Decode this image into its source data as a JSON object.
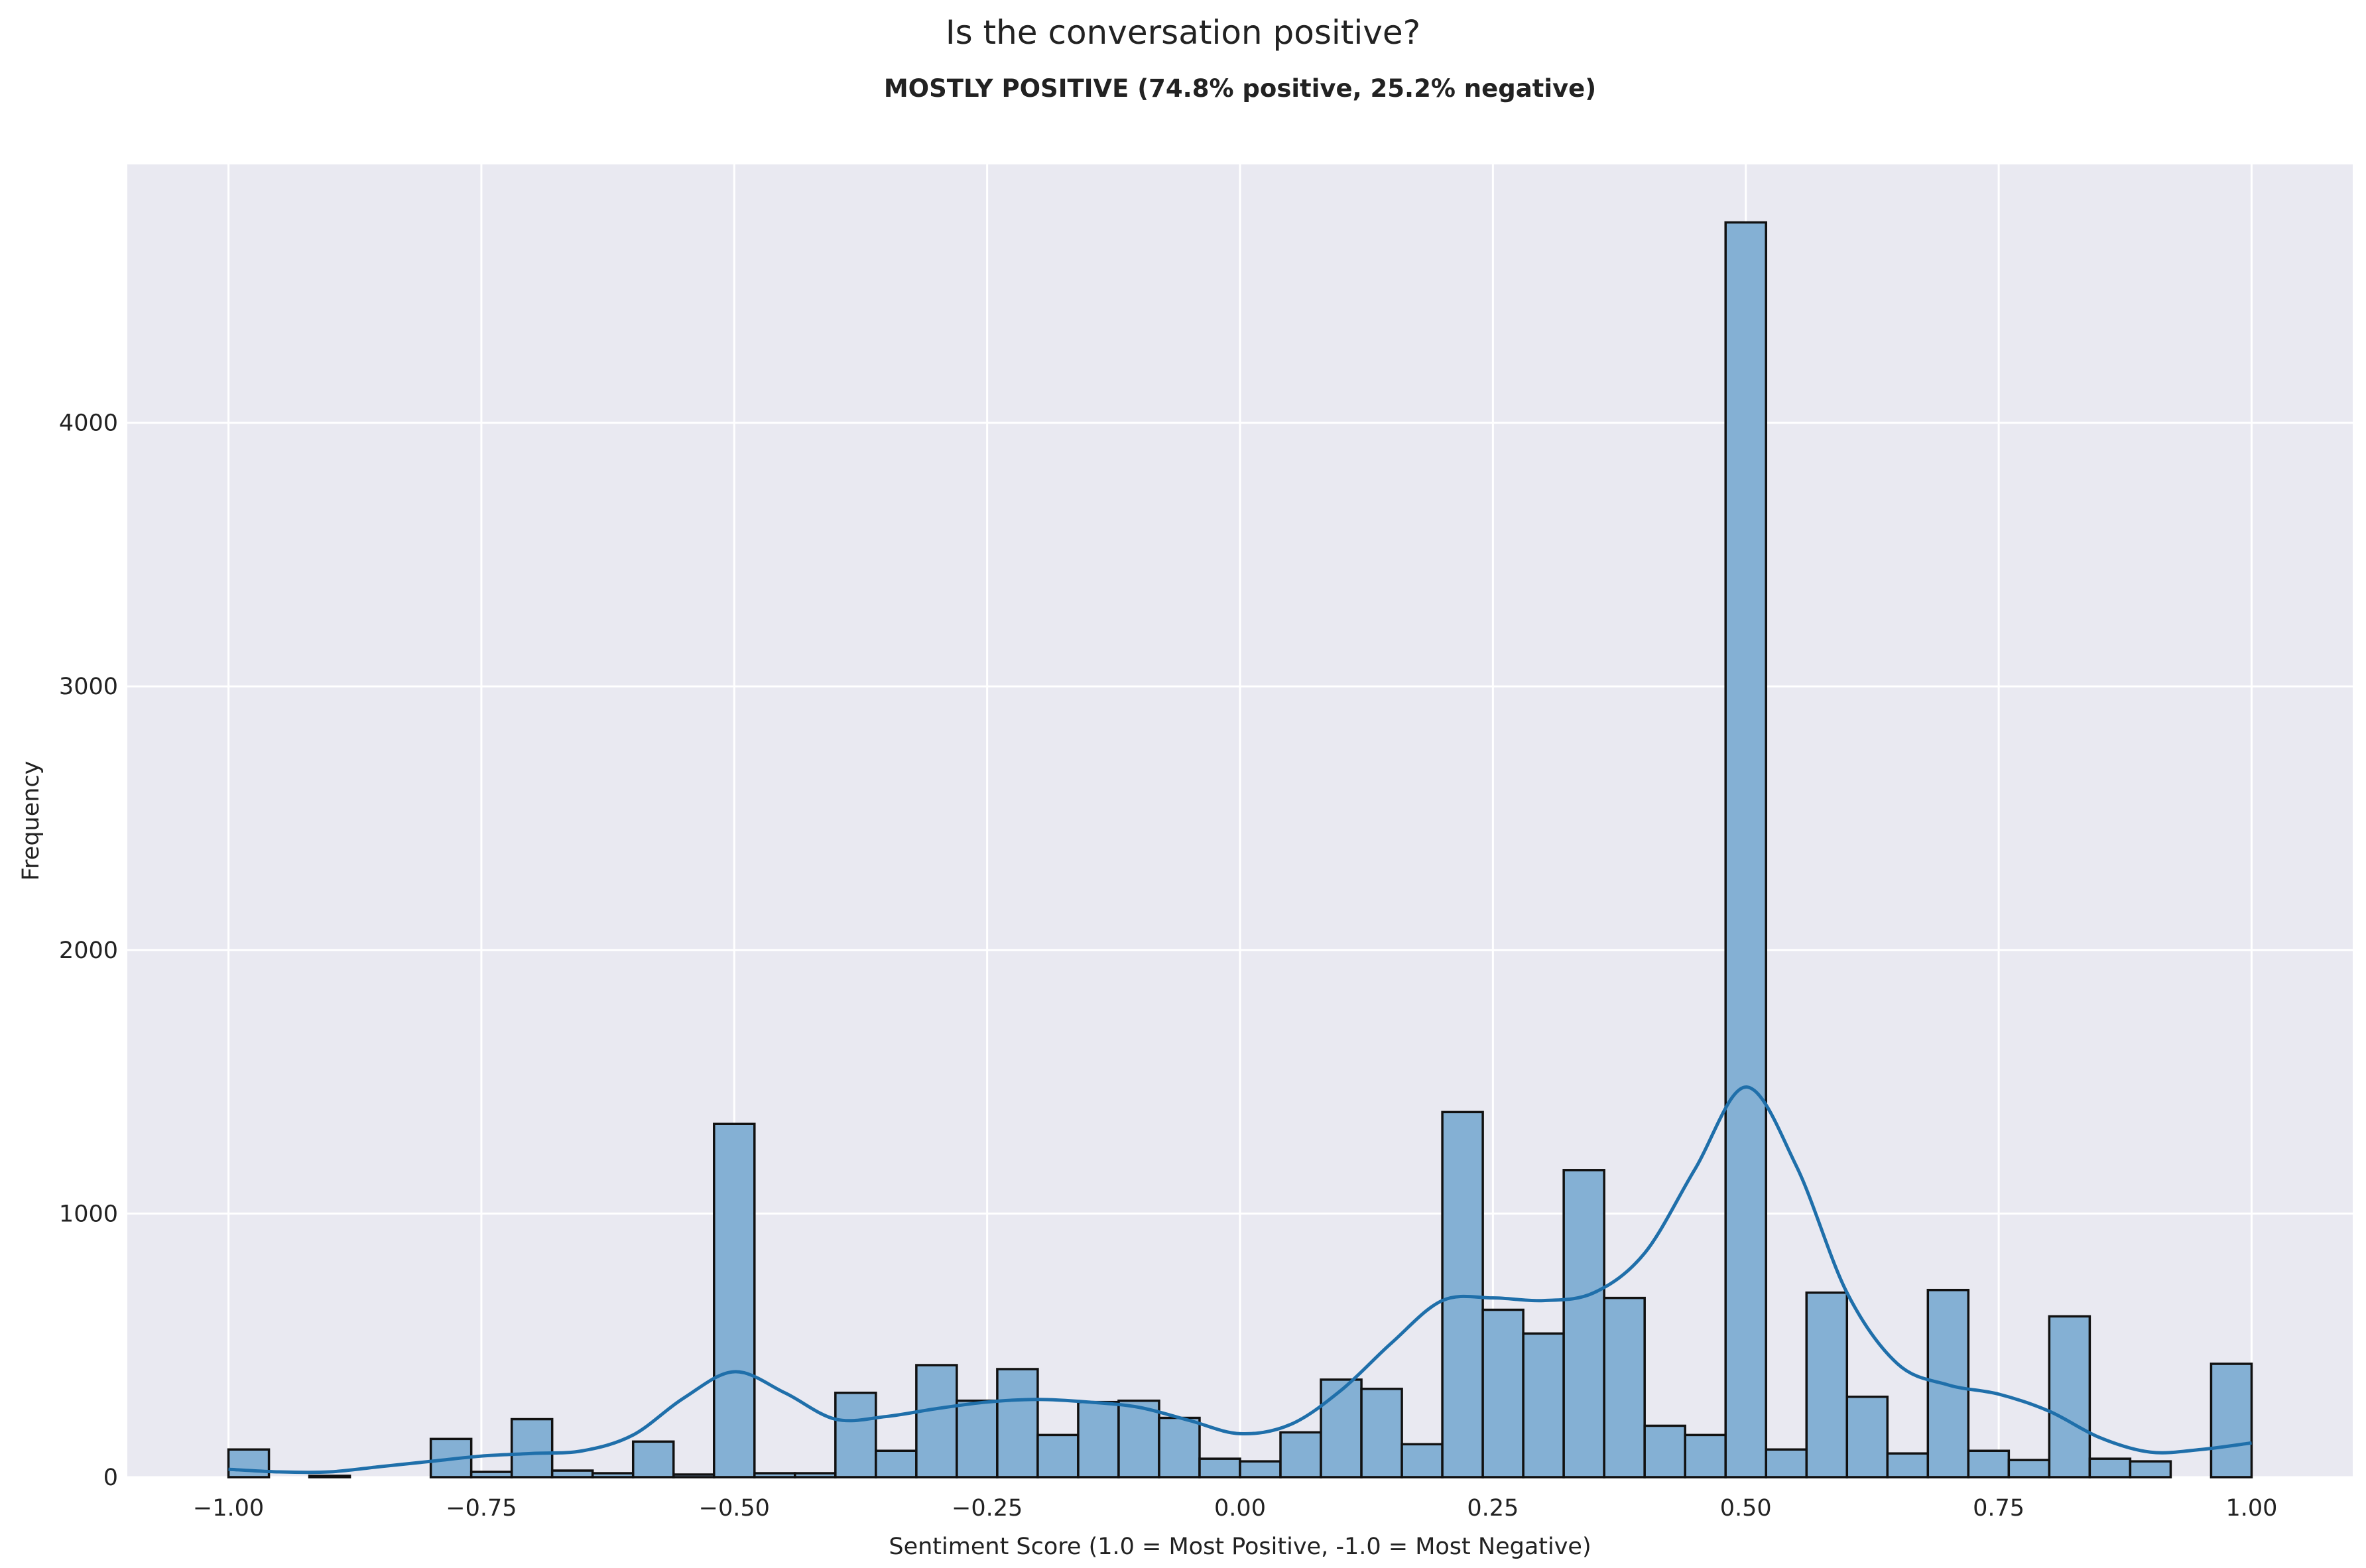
{
  "chart_data": {
    "type": "bar",
    "suptitle": "Is the conversation positive?",
    "title": "MOSTLY POSITIVE (74.8% positive, 25.2% negative)",
    "xlabel": "Sentiment Score (1.0 = Most Positive, -1.0 = Most Negative)",
    "ylabel": "Frequency",
    "xlim": [
      -1.1,
      1.1
    ],
    "ylim": [
      0,
      4980
    ],
    "grid": true,
    "x_ticks": [
      -1.0,
      -0.75,
      -0.5,
      -0.25,
      0.0,
      0.25,
      0.5,
      0.75,
      1.0
    ],
    "x_tick_labels": [
      "−1.00",
      "−0.75",
      "−0.50",
      "−0.25",
      "0.00",
      "0.25",
      "0.50",
      "0.75",
      "1.00"
    ],
    "y_ticks": [
      0,
      1000,
      2000,
      3000,
      4000
    ],
    "y_tick_labels": [
      "0",
      "1000",
      "2000",
      "3000",
      "4000"
    ],
    "bin_start": -1.0,
    "bin_width": 0.04,
    "values": [
      105,
      0,
      5,
      0,
      0,
      145,
      20,
      220,
      25,
      15,
      135,
      10,
      1340,
      15,
      15,
      320,
      100,
      425,
      290,
      410,
      160,
      285,
      290,
      225,
      70,
      60,
      170,
      370,
      335,
      125,
      1385,
      635,
      545,
      1165,
      680,
      195,
      160,
      4760,
      105,
      700,
      305,
      90,
      710,
      100,
      65,
      610,
      70,
      60,
      0,
      430
    ],
    "kde": {
      "x": [
        -1.0,
        -0.95,
        -0.9,
        -0.85,
        -0.8,
        -0.75,
        -0.7,
        -0.65,
        -0.6,
        -0.55,
        -0.5,
        -0.45,
        -0.4,
        -0.35,
        -0.3,
        -0.25,
        -0.2,
        -0.15,
        -0.1,
        -0.05,
        0.0,
        0.05,
        0.1,
        0.15,
        0.2,
        0.25,
        0.3,
        0.35,
        0.4,
        0.45,
        0.5,
        0.55,
        0.6,
        0.65,
        0.7,
        0.75,
        0.8,
        0.85,
        0.9,
        0.95,
        1.0
      ],
      "y": [
        30,
        20,
        20,
        40,
        60,
        80,
        90,
        100,
        160,
        300,
        400,
        320,
        220,
        230,
        260,
        285,
        295,
        285,
        265,
        215,
        165,
        200,
        330,
        510,
        670,
        680,
        670,
        700,
        850,
        1170,
        1480,
        1180,
        700,
        430,
        350,
        315,
        250,
        150,
        95,
        105,
        130
      ]
    },
    "colors": {
      "bar_fill": "#84b0d4",
      "bar_edge": "#111111",
      "kde_line": "#1f6faa",
      "plot_bg": "#e9e9f1",
      "grid": "#ffffff"
    }
  }
}
